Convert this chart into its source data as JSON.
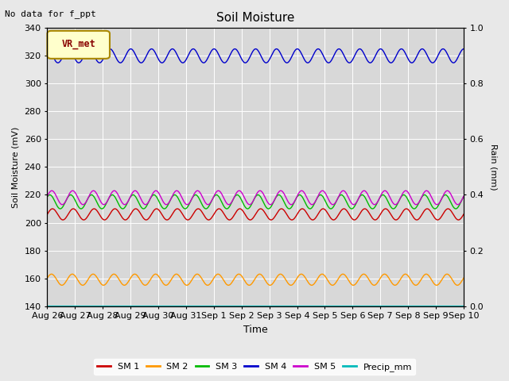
{
  "title": "Soil Moisture",
  "top_left_text": "No data for f_ppt",
  "legend_box_text": "VR_met",
  "xlabel": "Time",
  "ylabel_left": "Soil Moisture (mV)",
  "ylabel_right": "Rain (mm)",
  "ylim_left": [
    140,
    340
  ],
  "ylim_right": [
    0.0,
    1.0
  ],
  "yticks_left": [
    140,
    160,
    180,
    200,
    220,
    240,
    260,
    280,
    300,
    320,
    340
  ],
  "yticks_right": [
    0.0,
    0.2,
    0.4,
    0.6,
    0.8,
    1.0
  ],
  "background_color": "#e8e8e8",
  "plot_bg_color": "#d8d8d8",
  "n_points": 1500,
  "xtick_labels": [
    "Aug 26",
    "Aug 27",
    "Aug 28",
    "Aug 29",
    "Aug 30",
    "Aug 31",
    "Sep 1",
    "Sep 2",
    "Sep 3",
    "Sep 4",
    "Sep 5",
    "Sep 6",
    "Sep 7",
    "Sep 8",
    "Sep 9",
    "Sep 10"
  ],
  "series": [
    {
      "key": "SM1",
      "color": "#cc0000",
      "base": 206,
      "amp": 4,
      "freq": 20,
      "phase": 0.0
    },
    {
      "key": "SM2",
      "color": "#ff9900",
      "base": 159,
      "amp": 4,
      "freq": 20,
      "phase": 0.3
    },
    {
      "key": "SM3",
      "color": "#00bb00",
      "base": 215,
      "amp": 5,
      "freq": 20,
      "phase": 0.8
    },
    {
      "key": "SM4",
      "color": "#0000cc",
      "base": 320,
      "amp": 5,
      "freq": 20,
      "phase": 1.5
    },
    {
      "key": "SM5",
      "color": "#cc00cc",
      "base": 218,
      "amp": 5,
      "freq": 20,
      "phase": 0.2
    },
    {
      "key": "Precip",
      "color": "#00bbbb",
      "base": 140,
      "amp": 0,
      "freq": 0,
      "phase": 0
    }
  ],
  "legend_entries": [
    {
      "label": "SM 1",
      "color": "#cc0000"
    },
    {
      "label": "SM 2",
      "color": "#ff9900"
    },
    {
      "label": "SM 3",
      "color": "#00bb00"
    },
    {
      "label": "SM 4",
      "color": "#0000cc"
    },
    {
      "label": "SM 5",
      "color": "#cc00cc"
    },
    {
      "label": "Precip_mm",
      "color": "#00bbbb"
    }
  ]
}
